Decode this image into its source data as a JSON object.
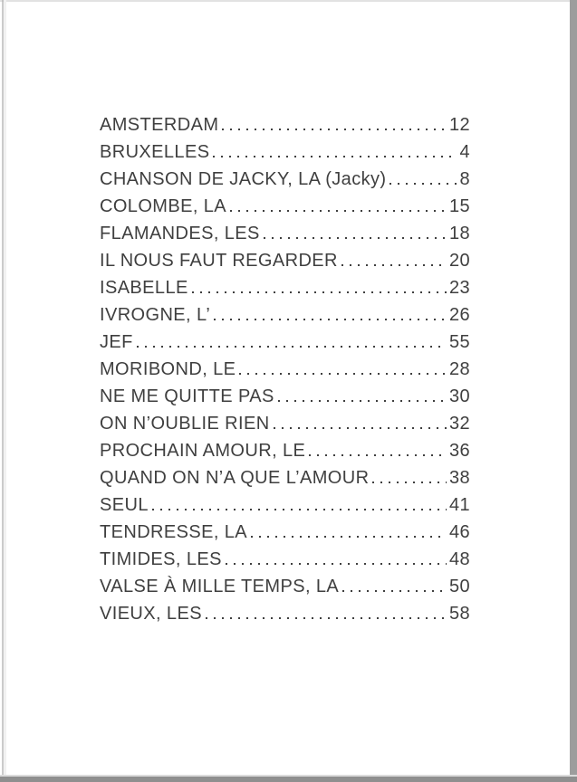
{
  "toc": {
    "entries": [
      {
        "title": "AMSTERDAM",
        "page": "12"
      },
      {
        "title": "BRUXELLES",
        "page": "4"
      },
      {
        "title": "CHANSON DE JACKY, LA (Jacky)",
        "page": "8"
      },
      {
        "title": "COLOMBE, LA",
        "page": "15"
      },
      {
        "title": "FLAMANDES, LES",
        "page": "18"
      },
      {
        "title": "IL NOUS FAUT REGARDER",
        "page": "20"
      },
      {
        "title": "ISABELLE",
        "page": "23"
      },
      {
        "title": "IVROGNE, L’",
        "page": "26"
      },
      {
        "title": "JEF",
        "page": "55"
      },
      {
        "title": "MORIBOND, LE",
        "page": "28"
      },
      {
        "title": "NE ME QUITTE PAS",
        "page": "30"
      },
      {
        "title": "ON N’OUBLIE RIEN",
        "page": "32"
      },
      {
        "title": "PROCHAIN AMOUR, LE",
        "page": "36"
      },
      {
        "title": "QUAND ON N’A QUE L’AMOUR",
        "page": "38"
      },
      {
        "title": "SEUL",
        "page": "41"
      },
      {
        "title": "TENDRESSE, LA",
        "page": "46"
      },
      {
        "title": "TIMIDES, LES",
        "page": "48"
      },
      {
        "title": "VALSE À MILLE TEMPS, LA",
        "page": "50"
      },
      {
        "title": "VIEUX, LES",
        "page": "58"
      }
    ]
  },
  "colors": {
    "text": "#3f3f3f",
    "page_bg": "#ffffff",
    "edge_right": "#9d9d9d",
    "edge_bottom": "#8f8f8f",
    "edge_left_line": "#b5b5b5",
    "edge_top_line": "#e2e2e2"
  }
}
